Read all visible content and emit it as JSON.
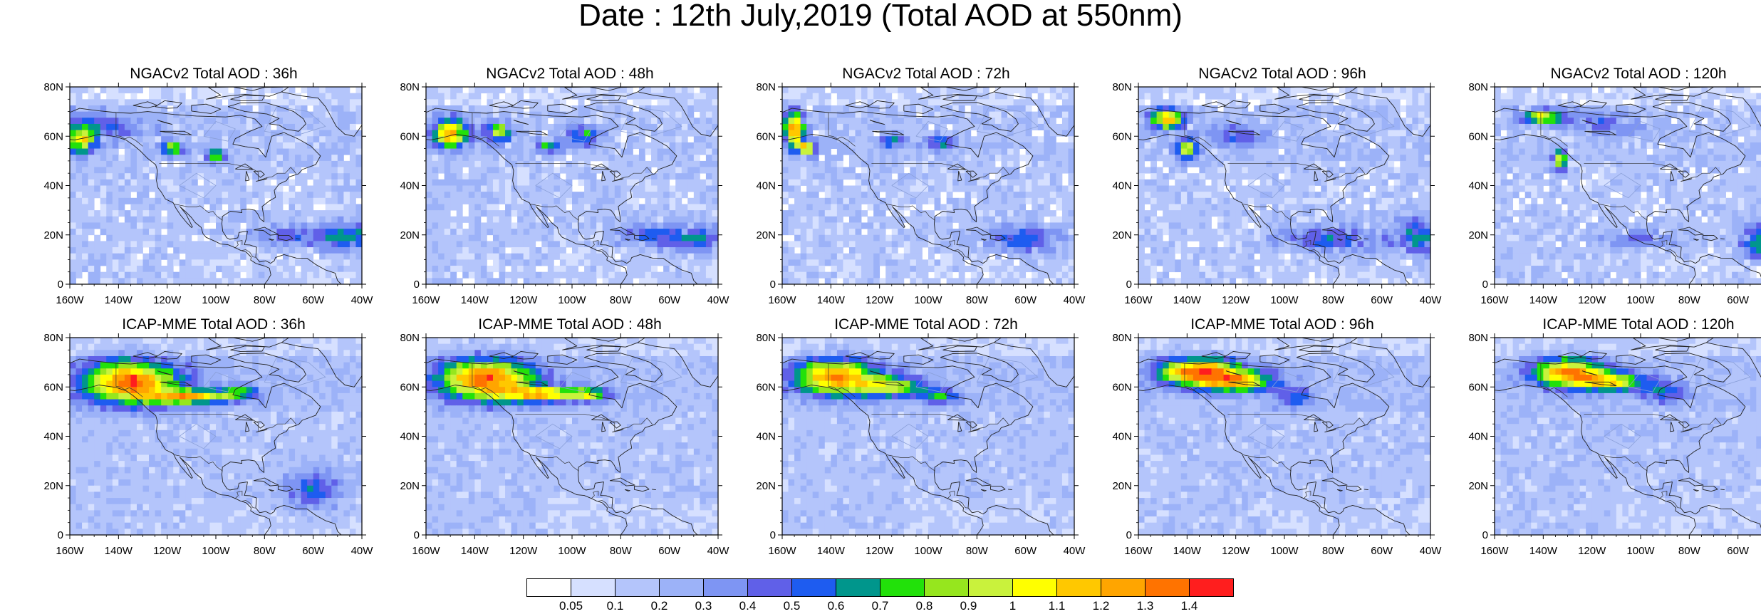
{
  "title": "Date : 12th July,2019 (Total AOD at 550nm)",
  "axes": {
    "lat_ticks": [
      "80N",
      "60N",
      "40N",
      "20N",
      "0"
    ],
    "lon_ticks": [
      "160W",
      "140W",
      "120W",
      "100W",
      "80W",
      "60W",
      "40W"
    ]
  },
  "panels": [
    {
      "title": "NGACv2 Total AOD : 36h",
      "model": "NGACv2",
      "lead": "36h"
    },
    {
      "title": "NGACv2 Total AOD : 48h",
      "model": "NGACv2",
      "lead": "48h"
    },
    {
      "title": "NGACv2 Total AOD : 72h",
      "model": "NGACv2",
      "lead": "72h"
    },
    {
      "title": "NGACv2 Total AOD : 96h",
      "model": "NGACv2",
      "lead": "96h"
    },
    {
      "title": "NGACv2 Total AOD : 120h",
      "model": "NGACv2",
      "lead": "120h"
    },
    {
      "title": "ICAP-MME Total AOD : 36h",
      "model": "ICAP-MME",
      "lead": "36h"
    },
    {
      "title": "ICAP-MME Total AOD : 48h",
      "model": "ICAP-MME",
      "lead": "48h"
    },
    {
      "title": "ICAP-MME Total AOD : 72h",
      "model": "ICAP-MME",
      "lead": "72h"
    },
    {
      "title": "ICAP-MME Total AOD : 96h",
      "model": "ICAP-MME",
      "lead": "96h"
    },
    {
      "title": "ICAP-MME Total AOD : 120h",
      "model": "ICAP-MME",
      "lead": "120h"
    }
  ],
  "colorbar": {
    "labels": [
      "0.05",
      "0.1",
      "0.2",
      "0.3",
      "0.4",
      "0.5",
      "0.6",
      "0.7",
      "0.8",
      "0.9",
      "1",
      "1.1",
      "1.2",
      "1.3",
      "1.4"
    ],
    "colors": [
      "#ffffff",
      "#d6e0ff",
      "#b4c5fb",
      "#9cb2f8",
      "#7e95f3",
      "#6060e8",
      "#1e5cf0",
      "#00968c",
      "#22e10a",
      "#96e61e",
      "#c9f23c",
      "#ffff00",
      "#ffc800",
      "#ffa500",
      "#ff7300",
      "#ff1e1e"
    ]
  }
}
